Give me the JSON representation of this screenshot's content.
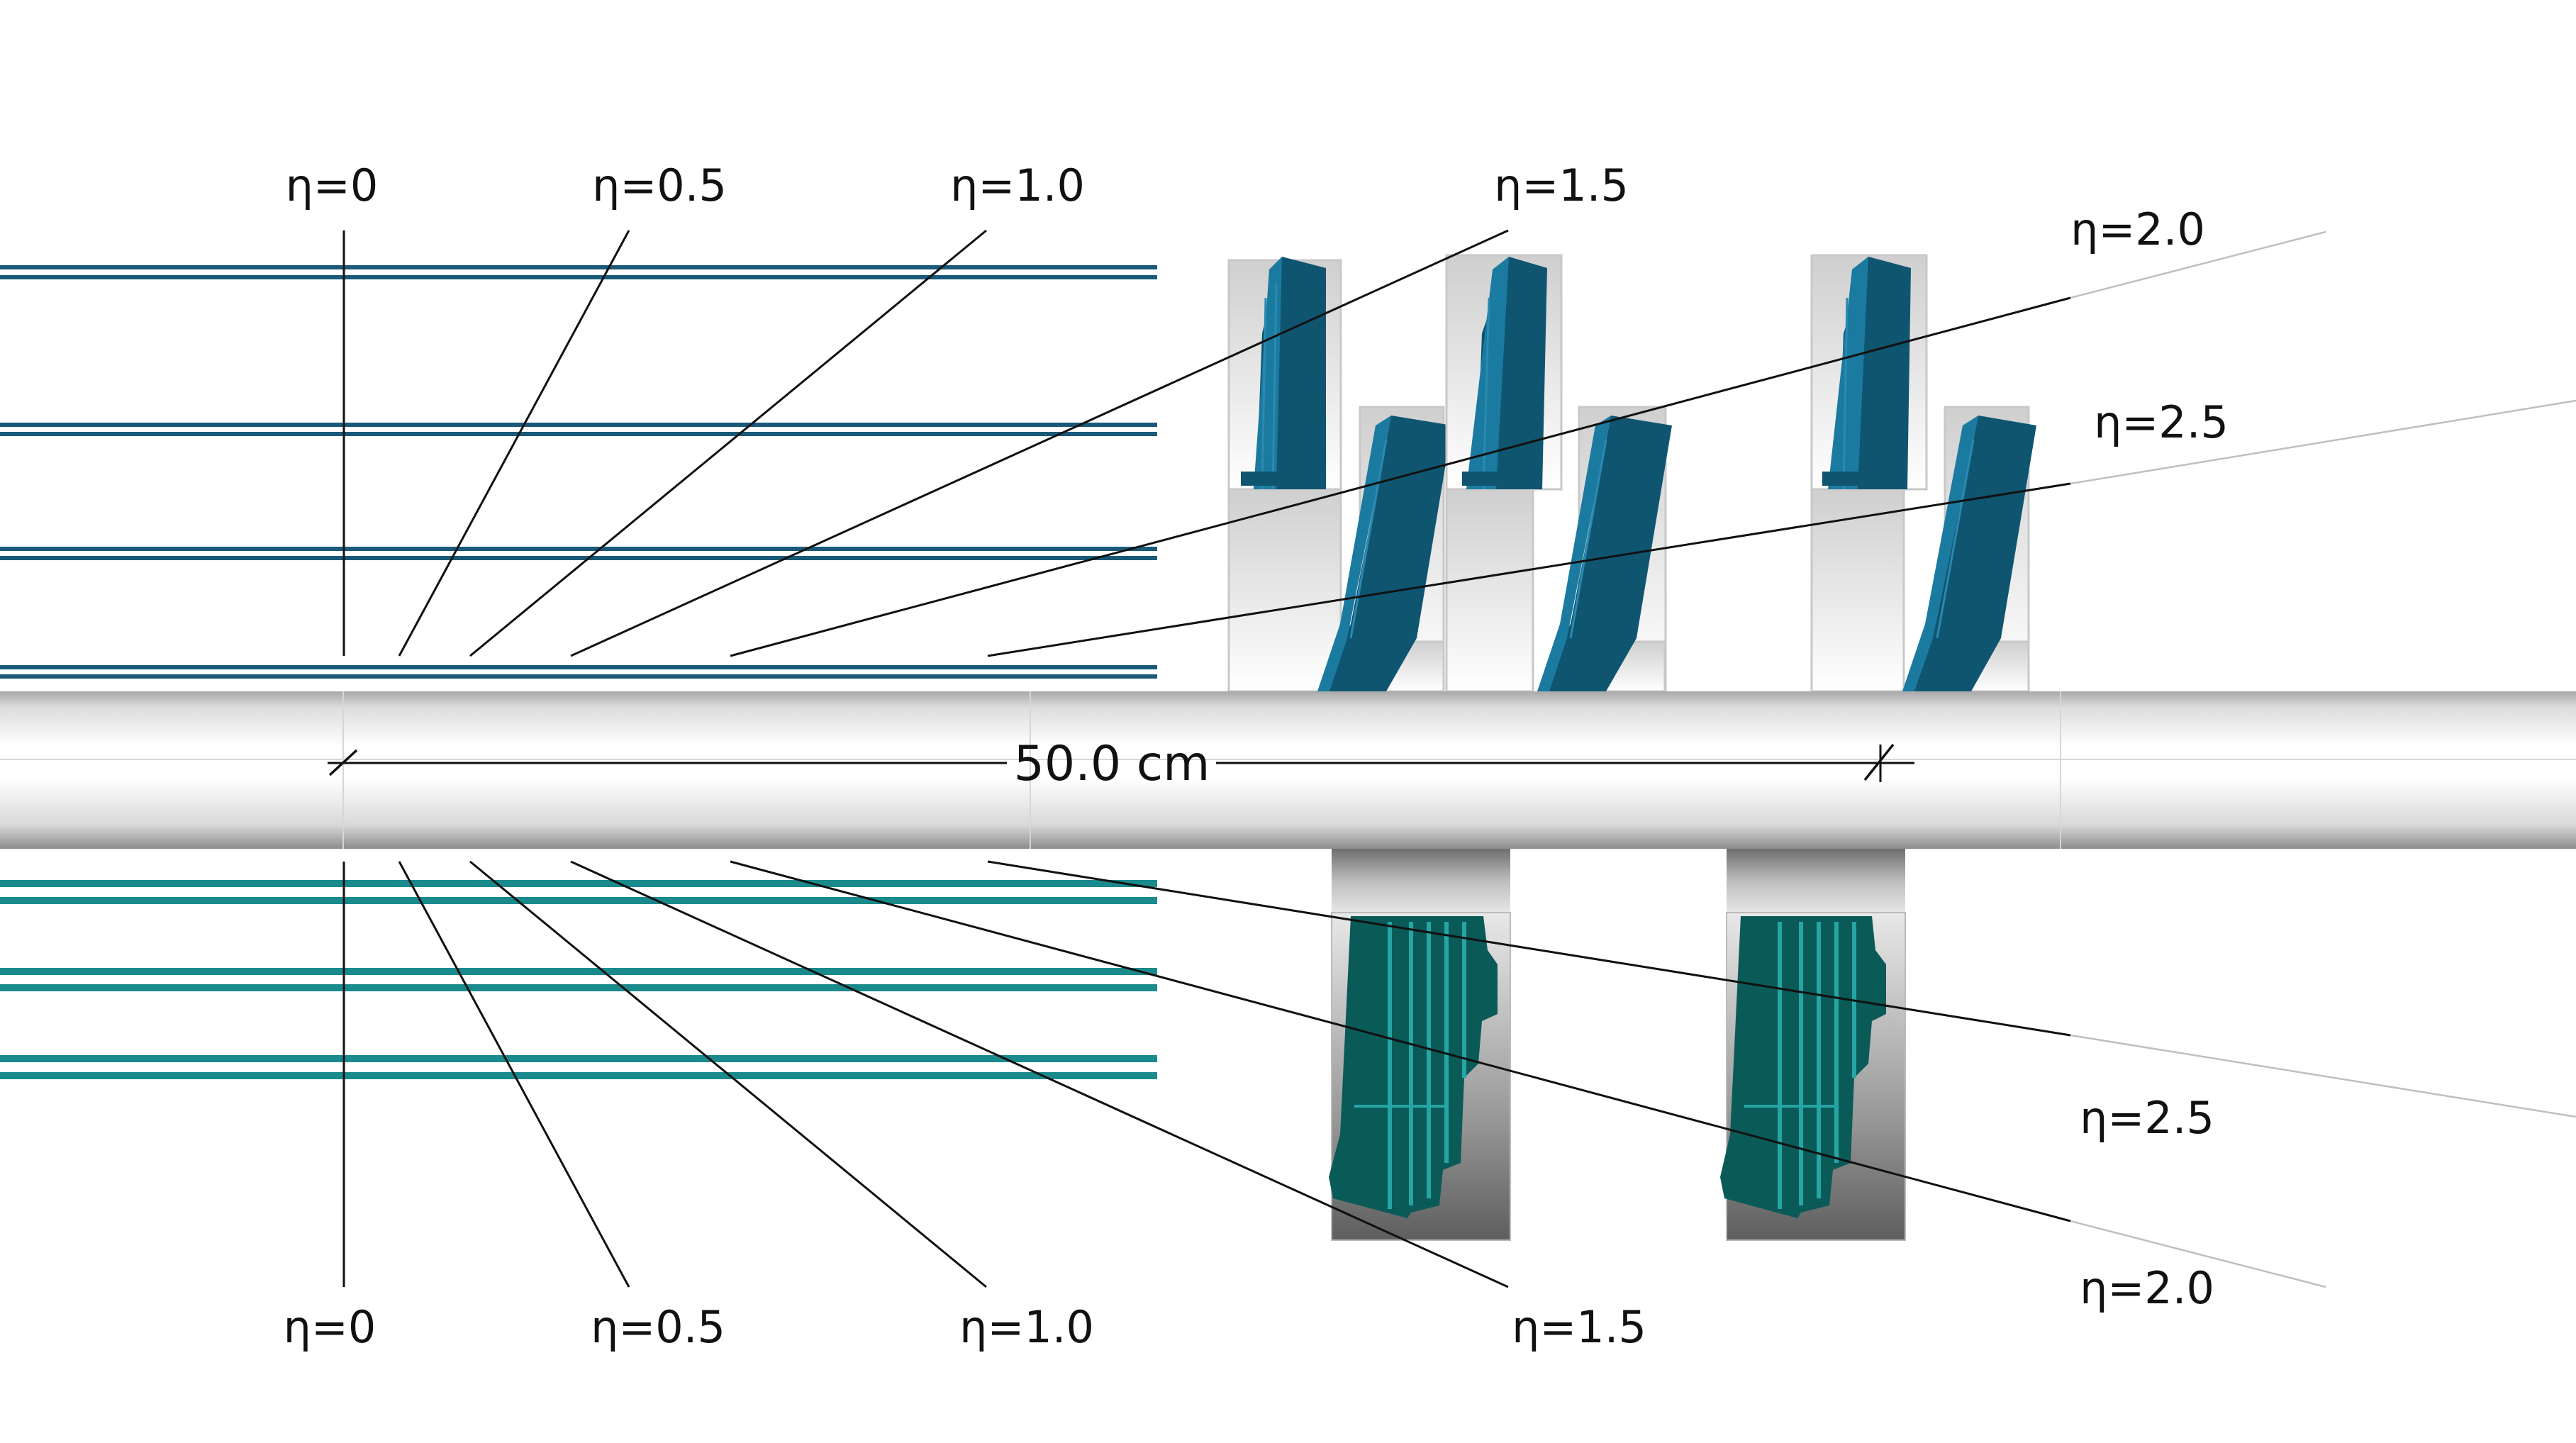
{
  "top_labels": [
    "η=0",
    "η=0.5",
    "η=1.0",
    "η=1.5",
    "η=2.0",
    "η=2.5"
  ],
  "bottom_labels": [
    "η=0",
    "η=0.5",
    "η=1.0",
    "η=1.5",
    "η=2.5",
    "η=2.0"
  ],
  "scale_bar": {
    "label": "50.0 cm"
  },
  "colors": {
    "top_layers": "#1a5a78",
    "top_modules": "#0f5570",
    "top_modules_edge": "#1b7aa0",
    "bottom_layers": "#1b8a8c",
    "bottom_modules": "#0a5a58",
    "bottom_modules_edge": "#26a5a5",
    "beampipe_dark": "#9a9a9a",
    "beampipe_light": "#ffffff"
  }
}
